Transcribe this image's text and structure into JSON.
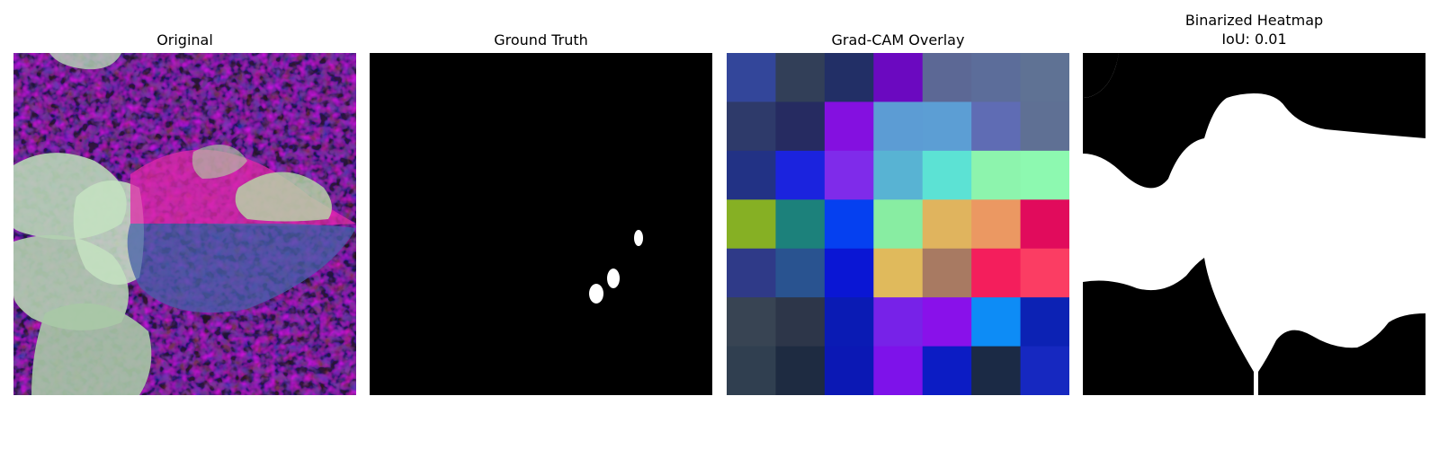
{
  "panels": [
    {
      "title": "Original"
    },
    {
      "title": "Ground Truth"
    },
    {
      "title": "Grad-CAM Overlay"
    },
    {
      "title": "Binarized Heatmap",
      "subtitle": "IoU: 0.01"
    }
  ],
  "gradcam": {
    "rows": 7,
    "cols": 7,
    "colors": [
      [
        "#33469a",
        "#323f58",
        "#222f66",
        "#6b09c0",
        "#5c6895",
        "#5c6d9a",
        "#5f7294"
      ],
      [
        "#2e3a6a",
        "#262b61",
        "#8410e0",
        "#5c9cd4",
        "#5c9ed4",
        "#5f6cb4",
        "#5f7094"
      ],
      [
        "#223285",
        "#1b23de",
        "#7f2bea",
        "#58b3d3",
        "#5ce2d4",
        "#8df4ad",
        "#8df9b0"
      ],
      [
        "#86b024",
        "#1c817b",
        "#0540f0",
        "#88eda2",
        "#e0b45e",
        "#eb9862",
        "#e10b5c"
      ],
      [
        "#2f3a88",
        "#295390",
        "#0a16d4",
        "#e0ba5c",
        "#a87a62",
        "#f41e5c",
        "#fb3d63"
      ],
      [
        "#384453",
        "#2d3649",
        "#0a1bb4",
        "#7722e8",
        "#8911ea",
        "#0d8cf6",
        "#0c22b4"
      ],
      [
        "#303f50",
        "#1e2b41",
        "#0b18b4",
        "#7e12ea",
        "#0c1cc4",
        "#1b2a45",
        "#1628c0"
      ]
    ]
  }
}
